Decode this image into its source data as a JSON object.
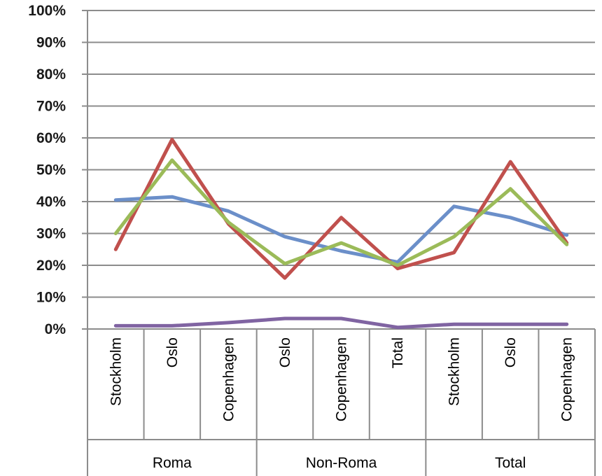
{
  "chart_data": {
    "type": "line",
    "title": "",
    "xlabel": "",
    "ylabel": "",
    "ylim": [
      0,
      100
    ],
    "ytick_labels": [
      "0%",
      "10%",
      "20%",
      "30%",
      "40%",
      "50%",
      "60%",
      "70%",
      "80%",
      "90%",
      "100%"
    ],
    "grid": true,
    "legend": "none",
    "categories": [
      "Stockholm",
      "Oslo",
      "Copenhagen",
      "Oslo",
      "Copenhagen",
      "Total",
      "Stockholm",
      "Oslo",
      "Copenhagen"
    ],
    "groups": [
      {
        "label": "Roma",
        "count": 3
      },
      {
        "label": "Non-Roma",
        "count": 3
      },
      {
        "label": "Total",
        "count": 3
      }
    ],
    "series": [
      {
        "color": "#6b8fc9",
        "values": [
          40.5,
          41.5,
          37,
          29,
          24.5,
          21,
          38.5,
          35,
          29.5
        ]
      },
      {
        "color": "#c0504d",
        "values": [
          25,
          59.5,
          33,
          16,
          35,
          19,
          24,
          52.5,
          27
        ]
      },
      {
        "color": "#9bbb59",
        "values": [
          30,
          53,
          33.5,
          20.5,
          27,
          20,
          29,
          44,
          26.5
        ]
      },
      {
        "color": "#8064a2",
        "values": [
          1,
          1,
          2,
          3.3,
          3.3,
          0.5,
          1.5,
          1.5,
          1.5
        ]
      }
    ]
  }
}
